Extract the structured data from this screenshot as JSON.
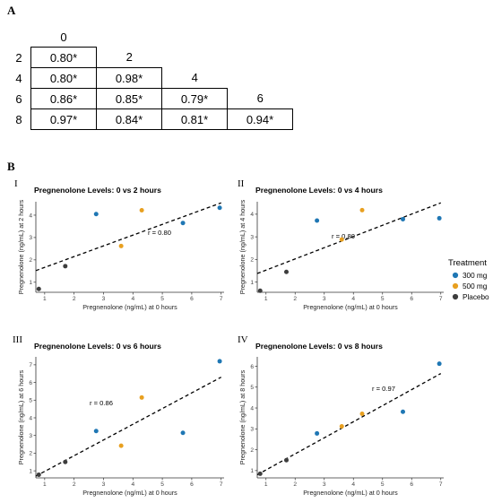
{
  "panel_a": {
    "letter": "A",
    "col_headers": [
      "0",
      "2",
      "4",
      "6"
    ],
    "rows": [
      {
        "label": "2",
        "cells": [
          "0.80*"
        ]
      },
      {
        "label": "4",
        "cells": [
          "0.80*",
          "0.98*"
        ]
      },
      {
        "label": "6",
        "cells": [
          "0.86*",
          "0.85*",
          "0.79*"
        ]
      },
      {
        "label": "8",
        "cells": [
          "0.97*",
          "0.84*",
          "0.81*",
          "0.94*"
        ]
      }
    ]
  },
  "panel_b": {
    "letter": "B",
    "legend": {
      "title": "Treatment",
      "items": [
        {
          "label": "300 mg",
          "color": "#1f77b4"
        },
        {
          "label": "500 mg",
          "color": "#e8a020"
        },
        {
          "label": "Placebo",
          "color": "#3d3d3d"
        }
      ]
    }
  },
  "chart_data": [
    {
      "type": "scatter",
      "roman": "I",
      "title": "Pregnenolone Levels: 0 vs 2 hours",
      "xlabel": "Pregnenolone (ng/mL) at 0 hours",
      "ylabel": "Pregnenolone (ng/mL) at 2 hours",
      "annotation": "r = 0.80",
      "xlim": [
        0.7,
        7.1
      ],
      "ylim": [
        0.55,
        4.6
      ],
      "xticks": [
        1,
        2,
        3,
        4,
        5,
        6,
        7
      ],
      "yticks": [
        1,
        2,
        3,
        4
      ],
      "trend": [
        [
          0.7,
          1.52
        ],
        [
          7.0,
          4.55
        ]
      ],
      "points": [
        {
          "x": 0.8,
          "y": 0.7,
          "group": "Placebo"
        },
        {
          "x": 1.7,
          "y": 1.72,
          "group": "Placebo"
        },
        {
          "x": 2.75,
          "y": 4.05,
          "group": "300 mg"
        },
        {
          "x": 5.7,
          "y": 3.65,
          "group": "300 mg"
        },
        {
          "x": 6.95,
          "y": 4.33,
          "group": "300 mg"
        },
        {
          "x": 3.6,
          "y": 2.62,
          "group": "500 mg"
        },
        {
          "x": 4.3,
          "y": 4.22,
          "group": "500 mg"
        }
      ]
    },
    {
      "type": "scatter",
      "roman": "II",
      "title": "Pregnenolone Levels: 0 vs 4 hours",
      "xlabel": "Pregnenolone (ng/mL) at 0 hours",
      "ylabel": "Pregnenolone (ng/mL) at 4 hours",
      "annotation": "r = 0.80",
      "xlim": [
        0.7,
        7.1
      ],
      "ylim": [
        0.55,
        4.55
      ],
      "xticks": [
        1,
        2,
        3,
        4,
        5,
        6,
        7
      ],
      "yticks": [
        1,
        2,
        3,
        4
      ],
      "trend": [
        [
          0.7,
          1.38
        ],
        [
          7.0,
          4.5
        ]
      ],
      "points": [
        {
          "x": 0.8,
          "y": 0.62,
          "group": "Placebo"
        },
        {
          "x": 1.7,
          "y": 1.45,
          "group": "Placebo"
        },
        {
          "x": 2.75,
          "y": 3.72,
          "group": "300 mg"
        },
        {
          "x": 5.7,
          "y": 3.78,
          "group": "300 mg"
        },
        {
          "x": 6.95,
          "y": 3.82,
          "group": "300 mg"
        },
        {
          "x": 3.6,
          "y": 2.88,
          "group": "500 mg"
        },
        {
          "x": 4.3,
          "y": 4.18,
          "group": "500 mg"
        }
      ]
    },
    {
      "type": "scatter",
      "roman": "III",
      "title": "Pregnenolone Levels: 0 vs 6 hours",
      "xlabel": "Pregnenolone (ng/mL) at 0 hours",
      "ylabel": "Pregnenolone (ng/mL) at 6 hours",
      "annotation": "r = 0.86",
      "xlim": [
        0.7,
        7.1
      ],
      "ylim": [
        0.6,
        7.45
      ],
      "xticks": [
        1,
        2,
        3,
        4,
        5,
        6,
        7
      ],
      "yticks": [
        1,
        2,
        3,
        4,
        5,
        6,
        7
      ],
      "trend": [
        [
          0.7,
          0.7
        ],
        [
          7.0,
          6.3
        ]
      ],
      "points": [
        {
          "x": 0.8,
          "y": 0.78,
          "group": "Placebo"
        },
        {
          "x": 1.7,
          "y": 1.5,
          "group": "Placebo"
        },
        {
          "x": 2.75,
          "y": 3.25,
          "group": "300 mg"
        },
        {
          "x": 5.7,
          "y": 3.15,
          "group": "300 mg"
        },
        {
          "x": 6.95,
          "y": 7.2,
          "group": "300 mg"
        },
        {
          "x": 3.6,
          "y": 2.42,
          "group": "500 mg"
        },
        {
          "x": 4.3,
          "y": 5.15,
          "group": "500 mg"
        }
      ]
    },
    {
      "type": "scatter",
      "roman": "IV",
      "title": "Pregnenolone Levels: 0 vs 8 hours",
      "xlabel": "Pregnenolone (ng/mL) at 0 hours",
      "ylabel": "Pregnenolone (ng/mL) at 8 hours",
      "annotation": "r = 0.97",
      "xlim": [
        0.7,
        7.1
      ],
      "ylim": [
        0.65,
        6.45
      ],
      "xticks": [
        1,
        2,
        3,
        4,
        5,
        6,
        7
      ],
      "yticks": [
        1,
        2,
        3,
        4,
        5,
        6
      ],
      "trend": [
        [
          0.7,
          0.8
        ],
        [
          7.0,
          5.65
        ]
      ],
      "points": [
        {
          "x": 0.8,
          "y": 0.85,
          "group": "Placebo"
        },
        {
          "x": 1.7,
          "y": 1.5,
          "group": "Placebo"
        },
        {
          "x": 2.75,
          "y": 2.78,
          "group": "300 mg"
        },
        {
          "x": 5.7,
          "y": 3.82,
          "group": "300 mg"
        },
        {
          "x": 6.95,
          "y": 6.12,
          "group": "300 mg"
        },
        {
          "x": 3.6,
          "y": 3.12,
          "group": "500 mg"
        },
        {
          "x": 4.3,
          "y": 3.72,
          "group": "500 mg"
        }
      ]
    }
  ]
}
